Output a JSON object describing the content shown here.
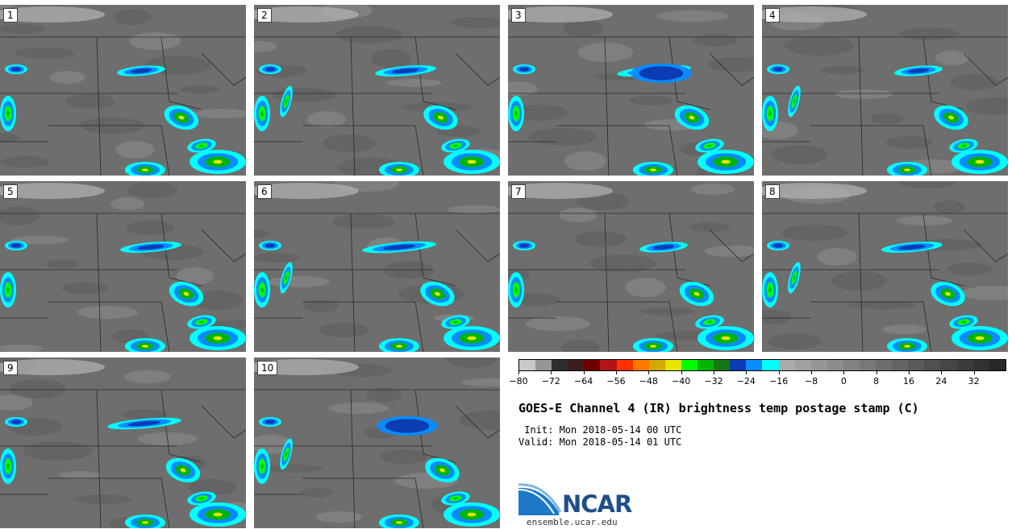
{
  "panels": [
    "1",
    "2",
    "3",
    "4",
    "5",
    "6",
    "7",
    "8",
    "9",
    "10"
  ],
  "colorbar": {
    "colors": [
      "#c8c8c8",
      "#969696",
      "#2d2d2d",
      "#3c1c1c",
      "#6e0000",
      "#b41414",
      "#ff3200",
      "#ff7800",
      "#d2aa00",
      "#e6e600",
      "#00ff00",
      "#00b400",
      "#147814",
      "#0a3cb4",
      "#0a8cff",
      "#00ffff",
      "#aaaaaa",
      "#a0a0a0",
      "#969696",
      "#8c8c8c",
      "#828282",
      "#787878",
      "#6e6e6e",
      "#646464",
      "#5a5a5a",
      "#505050",
      "#464646",
      "#3c3c3c",
      "#323232",
      "#282828"
    ],
    "tick_labels": [
      "−80",
      "−72",
      "−64",
      "−56",
      "−48",
      "−40",
      "−32",
      "−24",
      "−16",
      "−8",
      "0",
      "8",
      "16",
      "24",
      "32"
    ]
  },
  "title": "GOES-E Channel 4 (IR) brightness temp postage stamp (C)",
  "init": " Init: Mon 2018-05-14 00 UTC",
  "valid": "Valid: Mon 2018-05-14 01 UTC",
  "logo_text": "NCAR",
  "url": "ensemble.ucar.edu"
}
